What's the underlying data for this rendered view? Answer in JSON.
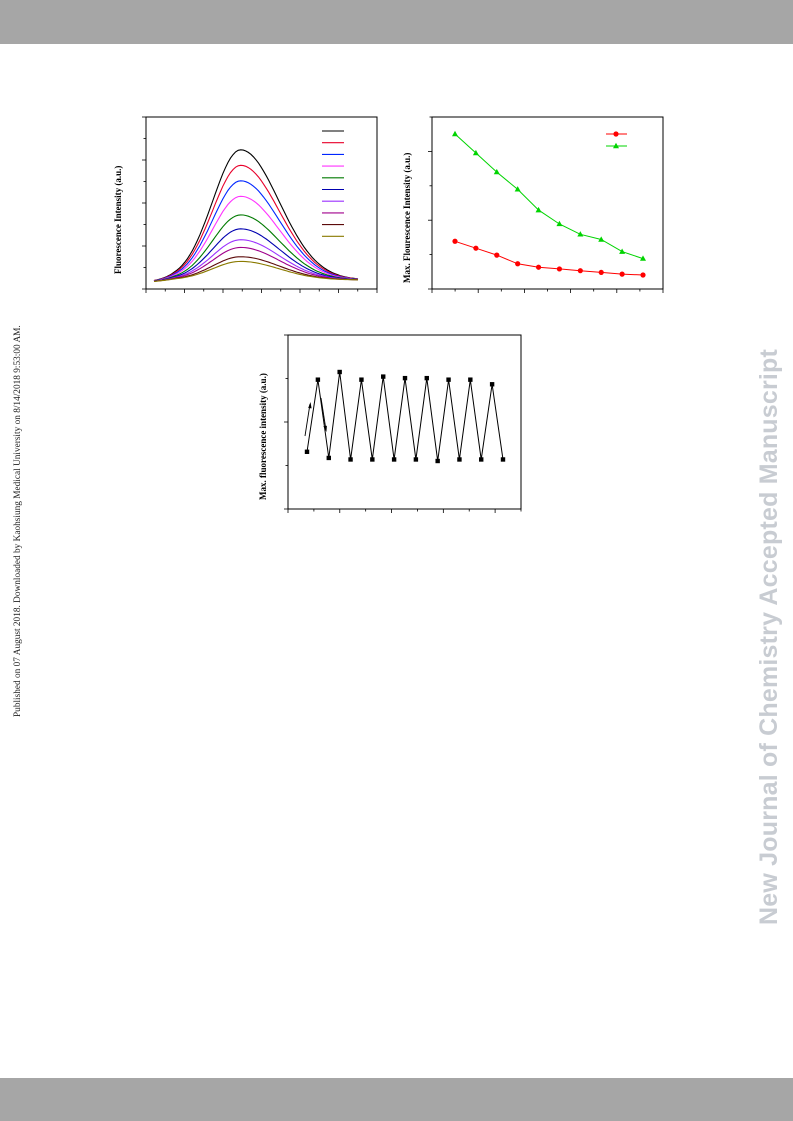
{
  "page": {
    "side_note": "Published on 07 August 2018. Downloaded by Kaohsiung Medical University on 8/14/2018 9:53:00 AM.",
    "watermark": "New Journal of Chemistry Accepted Manuscript"
  },
  "colors": {
    "band": "#a6a6a6",
    "watermark": "#c8ccd2",
    "spectra": [
      "#000000",
      "#e8002a",
      "#0026ff",
      "#ff33ff",
      "#007a00",
      "#0000b0",
      "#9b30ff",
      "#a0008c",
      "#5c0a0a",
      "#8a7a00"
    ],
    "red_series": "#ff0000",
    "green_series": "#00d400"
  },
  "chart_data": [
    {
      "type": "line",
      "ylabel": "Fluorescence Intensity (a.u.)",
      "xlabel": "",
      "x": [
        0,
        1,
        2,
        3,
        4,
        5,
        6,
        7,
        8,
        9,
        10,
        11,
        12,
        13,
        14,
        15,
        16,
        17,
        18,
        19,
        20,
        21,
        22,
        23,
        24,
        25,
        26,
        27,
        28,
        29,
        30,
        31,
        32,
        33,
        34,
        35,
        36,
        37,
        38,
        39,
        40,
        41,
        42,
        43,
        44,
        45,
        46,
        47,
        48,
        49,
        50,
        51,
        52,
        53,
        54,
        55,
        56,
        57,
        58,
        59,
        60,
        61,
        62,
        63,
        64,
        65,
        66,
        67,
        68,
        69,
        70,
        71,
        72,
        73,
        74,
        75,
        76,
        77,
        78,
        79,
        80
      ],
      "peak_x": 34,
      "ylim": [
        0,
        100
      ],
      "series": [
        {
          "peak": 84
        },
        {
          "peak": 74
        },
        {
          "peak": 64
        },
        {
          "peak": 54
        },
        {
          "peak": 42
        },
        {
          "peak": 33
        },
        {
          "peak": 26
        },
        {
          "peak": 21
        },
        {
          "peak": 15
        },
        {
          "peak": 12
        }
      ],
      "legend_entries": 10,
      "legend_placement": "top-right",
      "x_ticks": 13,
      "y_ticks": 9
    },
    {
      "type": "line",
      "ylabel": "Max. Flourescence Intensity (a.u.)",
      "xlabel": "",
      "x": [
        1,
        2,
        3,
        4,
        5,
        6,
        7,
        8,
        9,
        10
      ],
      "ylim": [
        0,
        100
      ],
      "series": [
        {
          "color": "#00d400",
          "marker": "triangle",
          "values": [
            91,
            80,
            69,
            59,
            47,
            39,
            33,
            30,
            23,
            19
          ]
        },
        {
          "color": "#ff0000",
          "marker": "circle",
          "values": [
            29,
            25,
            21,
            16,
            14,
            13,
            12,
            11,
            10,
            9.5
          ]
        }
      ],
      "legend_placement": "top-right",
      "x_ticks": 11,
      "y_ticks": 6
    },
    {
      "type": "line",
      "ylabel": "Max. fluorescence intensity (a.u.)",
      "xlabel": "",
      "x": [
        1,
        2,
        3,
        4,
        5,
        6,
        7,
        8,
        9,
        10,
        11,
        12,
        13,
        14,
        15,
        16,
        17,
        18,
        19
      ],
      "ylim": [
        0,
        100
      ],
      "series": [
        {
          "color": "#000000",
          "marker": "square",
          "values": [
            28,
            75,
            24,
            80,
            23,
            75,
            23,
            77,
            23,
            76,
            23,
            76,
            22,
            75,
            23,
            75,
            23,
            72,
            23
          ]
        }
      ],
      "annotation_arrows": 2,
      "x_ticks": 10,
      "y_ticks": 5
    }
  ]
}
